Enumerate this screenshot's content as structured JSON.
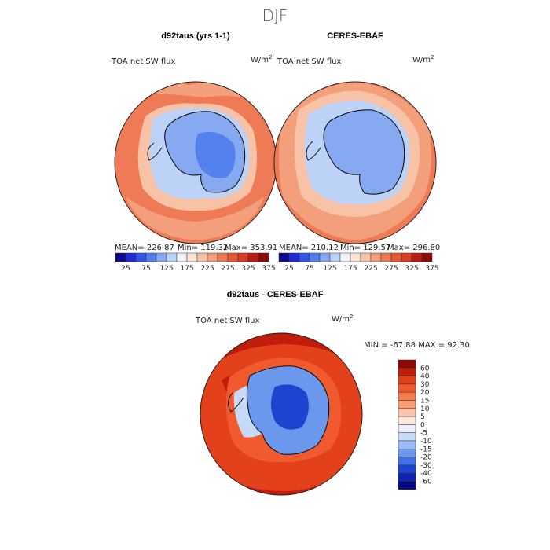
{
  "title": "DJF",
  "panels": [
    {
      "title": "d92taus (yrs 1-1)",
      "variable": "TOA net SW flux",
      "units": "W/m",
      "units_sup": "2",
      "stats": {
        "mean": "MEAN= 226.87",
        "min": "Min= 119.32",
        "max": "Max= 353.91"
      },
      "colorbar": {
        "ticks": [
          "25",
          "75",
          "125",
          "175",
          "225",
          "275",
          "325",
          "375"
        ],
        "colors": [
          "#0b0b8a",
          "#1f2bd4",
          "#2f56e8",
          "#5581ef",
          "#87a9f1",
          "#bcd3f7",
          "#eef2fa",
          "#fbe2d3",
          "#f7c2a6",
          "#f39f7b",
          "#ee7b55",
          "#e75a36",
          "#d93a21",
          "#b81c10",
          "#8c0a06"
        ]
      }
    },
    {
      "title": "CERES-EBAF",
      "variable": "TOA net SW flux",
      "units": "W/m",
      "units_sup": "2",
      "stats": {
        "mean": "MEAN= 210.12",
        "min": "Min= 129.57",
        "max": "Max= 296.80"
      },
      "colorbar": {
        "ticks": [
          "25",
          "75",
          "125",
          "175",
          "225",
          "275",
          "325",
          "375"
        ],
        "colors": [
          "#0b0b8a",
          "#1f2bd4",
          "#2f56e8",
          "#5581ef",
          "#87a9f1",
          "#bcd3f7",
          "#eef2fa",
          "#fbe2d3",
          "#f7c2a6",
          "#f39f7b",
          "#ee7b55",
          "#e75a36",
          "#d93a21",
          "#b81c10",
          "#8c0a06"
        ]
      }
    }
  ],
  "diff": {
    "title": "d92taus - CERES-EBAF",
    "variable": "TOA net SW flux",
    "units": "W/m",
    "units_sup": "2",
    "minmax": "MIN = -67.88 MAX =  92.30",
    "legend": {
      "labels": [
        "60",
        "40",
        "30",
        "20",
        "15",
        "10",
        "5",
        "0",
        "-5",
        "-10",
        "-15",
        "-20",
        "-30",
        "-40",
        "-60"
      ],
      "colors": [
        "#8c0a06",
        "#c01d0d",
        "#e3401c",
        "#f05a2e",
        "#f57a4d",
        "#f89c74",
        "#fbc3a8",
        "#fde6da",
        "#e9f0fb",
        "#c6daf7",
        "#97bbf2",
        "#6b98ec",
        "#3f6fe4",
        "#1d44cf",
        "#0f23b0",
        "#03078a"
      ]
    }
  },
  "map_colors": {
    "ocean_warm": "#ee7b55",
    "ocean_mid": "#f39f7b",
    "ocean_light": "#f7c2a6",
    "ice_edge": "#bcd3f7",
    "antarctica": "#87a9f1",
    "antarctica_low": "#5581ef",
    "diff_warm": "#e3401c",
    "diff_dark": "#c01d0d",
    "diff_blue": "#6b98ec",
    "diff_deep": "#1d44cf"
  }
}
